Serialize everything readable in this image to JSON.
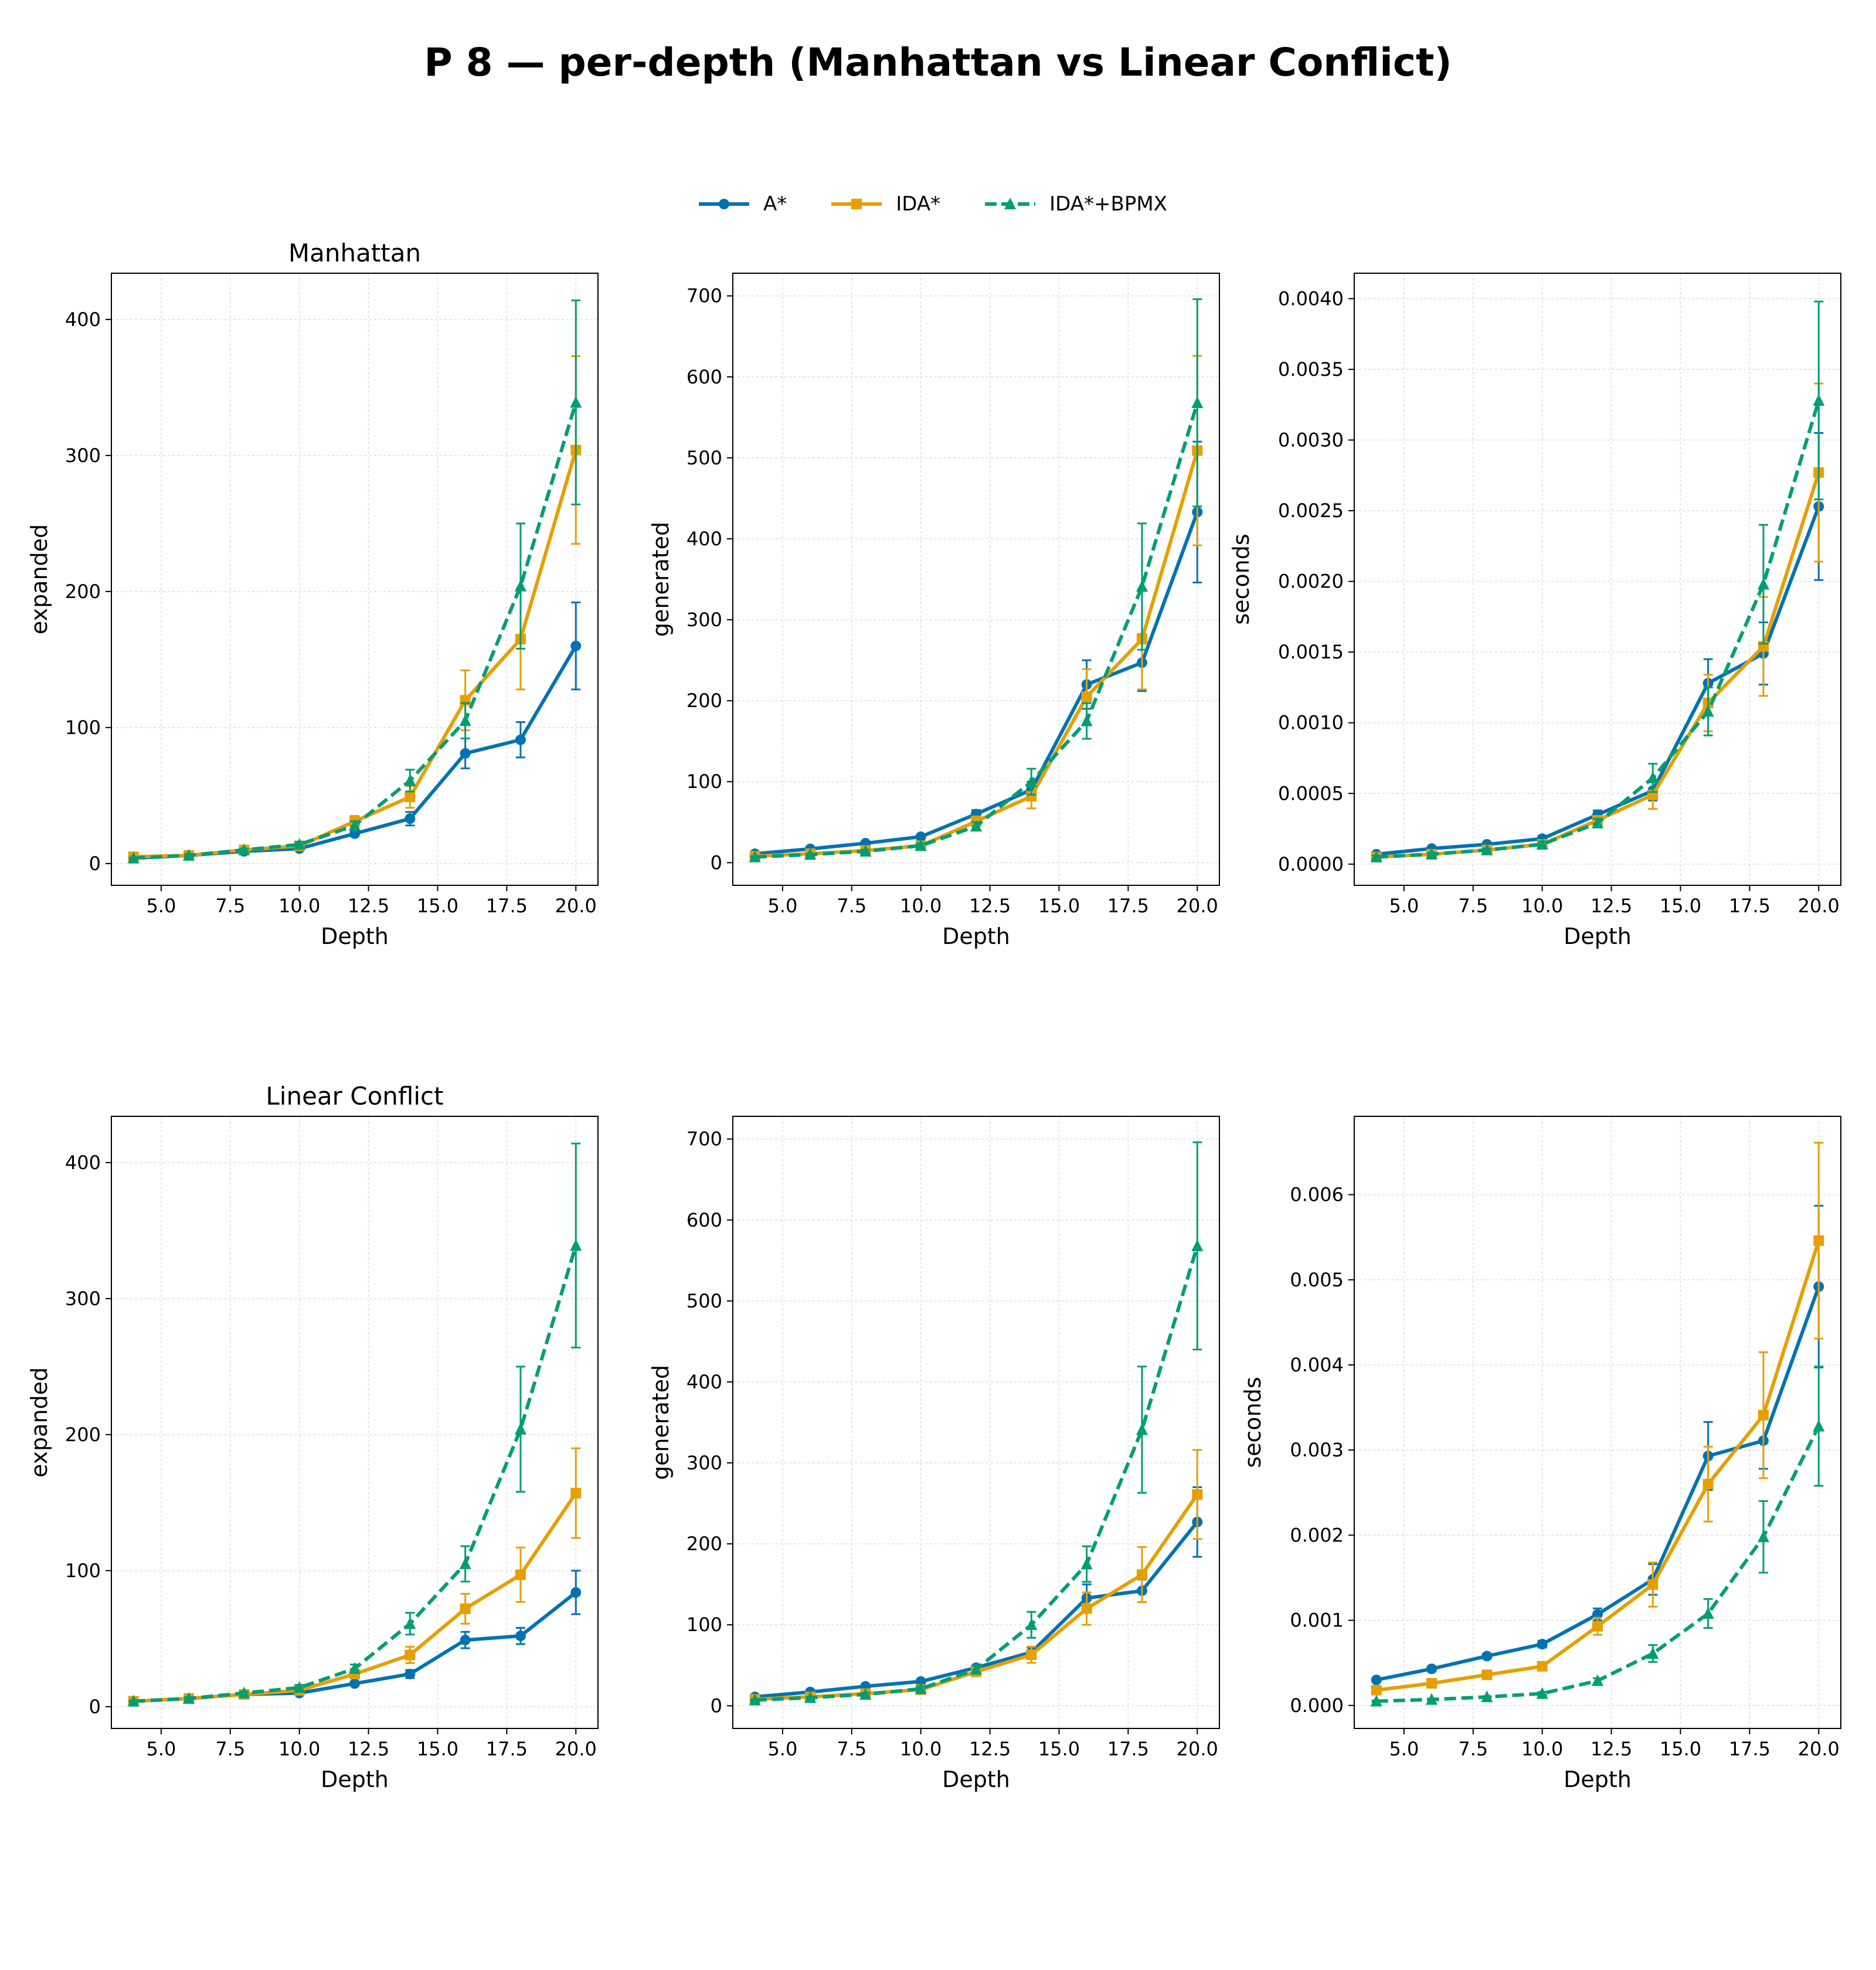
{
  "title": "P 8 — per-depth (Manhattan vs Linear Conflict)",
  "legend": {
    "placement": "top-center",
    "entries": [
      {
        "name": "A*",
        "color": "#0072b2",
        "marker": "circle",
        "dash": "solid"
      },
      {
        "name": "IDA*",
        "color": "#e69f00",
        "marker": "square",
        "dash": "solid"
      },
      {
        "name": "IDA*+BPMX",
        "color": "#009e73",
        "marker": "triangle",
        "dash": "dashed"
      }
    ]
  },
  "chart_data": [
    {
      "type": "line",
      "title": "Manhattan",
      "xlabel": "Depth",
      "ylabel": "expanded",
      "x": [
        4,
        6,
        8,
        10,
        12,
        14,
        16,
        18,
        20
      ],
      "xticks": [
        "5.0",
        "7.5",
        "10.0",
        "12.5",
        "15.0",
        "17.5",
        "20.0"
      ],
      "yticks": [
        "0",
        "100",
        "200",
        "300",
        "400"
      ],
      "xlim": [
        3.2,
        20.8
      ],
      "ylim": [
        -16,
        434
      ],
      "grid": true,
      "series": [
        {
          "name": "A*",
          "values": [
            4,
            6,
            9,
            11,
            22,
            33,
            81,
            91,
            160
          ],
          "err": [
            0.5,
            0.5,
            1,
            1,
            2,
            5,
            11,
            13,
            32
          ]
        },
        {
          "name": "IDA*",
          "values": [
            5,
            6,
            10,
            13,
            31,
            49,
            120,
            165,
            304
          ],
          "err": [
            0.5,
            1,
            1,
            1,
            4,
            8,
            22,
            37,
            69
          ]
        },
        {
          "name": "IDA*+BPMX",
          "values": [
            4,
            6,
            10,
            14,
            28,
            61,
            105,
            204,
            339
          ],
          "err": [
            0.5,
            1,
            1,
            2,
            3,
            8,
            13,
            46,
            75
          ]
        }
      ]
    },
    {
      "type": "line",
      "title": "",
      "xlabel": "Depth",
      "ylabel": "generated",
      "x": [
        4,
        6,
        8,
        10,
        12,
        14,
        16,
        18,
        20
      ],
      "xticks": [
        "5.0",
        "7.5",
        "10.0",
        "12.5",
        "15.0",
        "17.5",
        "20.0"
      ],
      "yticks": [
        "0",
        "100",
        "200",
        "300",
        "400",
        "500",
        "600",
        "700"
      ],
      "xlim": [
        3.2,
        20.8
      ],
      "ylim": [
        -28,
        728
      ],
      "grid": true,
      "series": [
        {
          "name": "A*",
          "values": [
            11,
            17,
            24,
            32,
            60,
            90,
            220,
            247,
            433
          ],
          "err": [
            1,
            1,
            2,
            2,
            5,
            10,
            30,
            35,
            87
          ]
        },
        {
          "name": "IDA*",
          "values": [
            8,
            11,
            15,
            21,
            51,
            82,
            205,
            276,
            509
          ],
          "err": [
            1,
            1,
            2,
            2,
            6,
            15,
            34,
            62,
            117
          ]
        },
        {
          "name": "IDA*+BPMX",
          "values": [
            7,
            10,
            14,
            21,
            45,
            100,
            175,
            341,
            568
          ],
          "err": [
            1,
            1,
            2,
            3,
            5,
            16,
            22,
            78,
            128
          ]
        }
      ]
    },
    {
      "type": "line",
      "title": "",
      "xlabel": "Depth",
      "ylabel": "seconds",
      "x": [
        4,
        6,
        8,
        10,
        12,
        14,
        16,
        18,
        20
      ],
      "xticks": [
        "5.0",
        "7.5",
        "10.0",
        "12.5",
        "15.0",
        "17.5",
        "20.0"
      ],
      "yticks": [
        "0.0000",
        "0.0005",
        "0.0010",
        "0.0015",
        "0.0020",
        "0.0025",
        "0.0030",
        "0.0035",
        "0.0040"
      ],
      "xlim": [
        3.2,
        20.8
      ],
      "ylim": [
        -0.00015,
        0.00418
      ],
      "grid": true,
      "series": [
        {
          "name": "A*",
          "values": [
            7e-05,
            0.00011,
            0.00014,
            0.00018,
            0.00035,
            0.00052,
            0.00128,
            0.00149,
            0.00253
          ],
          "err": [
            1e-05,
            1e-05,
            1e-05,
            2e-05,
            3e-05,
            7e-05,
            0.00017,
            0.00022,
            0.00052
          ]
        },
        {
          "name": "IDA*",
          "values": [
            5e-05,
            7e-05,
            0.0001,
            0.00014,
            0.00031,
            0.00049,
            0.00114,
            0.00154,
            0.00277
          ],
          "err": [
            1e-05,
            1e-05,
            1e-05,
            2e-05,
            3e-05,
            0.0001,
            0.0002,
            0.00035,
            0.00063
          ]
        },
        {
          "name": "IDA*+BPMX",
          "values": [
            5e-05,
            7e-05,
            0.0001,
            0.00014,
            0.00029,
            0.00061,
            0.00108,
            0.00198,
            0.00328
          ],
          "err": [
            1e-05,
            1e-05,
            1e-05,
            2e-05,
            3e-05,
            0.0001,
            0.00017,
            0.00042,
            0.0007
          ]
        }
      ]
    },
    {
      "type": "line",
      "title": "Linear Conflict",
      "xlabel": "Depth",
      "ylabel": "expanded",
      "x": [
        4,
        6,
        8,
        10,
        12,
        14,
        16,
        18,
        20
      ],
      "xticks": [
        "5.0",
        "7.5",
        "10.0",
        "12.5",
        "15.0",
        "17.5",
        "20.0"
      ],
      "yticks": [
        "0",
        "100",
        "200",
        "300",
        "400"
      ],
      "xlim": [
        3.2,
        20.8
      ],
      "ylim": [
        -16,
        434
      ],
      "grid": true,
      "series": [
        {
          "name": "A*",
          "values": [
            4,
            6,
            9,
            10,
            17,
            24,
            49,
            52,
            84
          ],
          "err": [
            0.5,
            0.5,
            1,
            1,
            1,
            3,
            6,
            6,
            16
          ]
        },
        {
          "name": "IDA*",
          "values": [
            4,
            6,
            9,
            12,
            24,
            38,
            72,
            97,
            157
          ],
          "err": [
            0.5,
            1,
            1,
            1,
            3,
            6,
            11,
            20,
            33
          ]
        },
        {
          "name": "IDA*+BPMX",
          "values": [
            4,
            6,
            10,
            14,
            28,
            61,
            105,
            204,
            339
          ],
          "err": [
            0.5,
            1,
            1,
            2,
            3,
            8,
            13,
            46,
            75
          ]
        }
      ]
    },
    {
      "type": "line",
      "title": "",
      "xlabel": "Depth",
      "ylabel": "generated",
      "x": [
        4,
        6,
        8,
        10,
        12,
        14,
        16,
        18,
        20
      ],
      "xticks": [
        "5.0",
        "7.5",
        "10.0",
        "12.5",
        "15.0",
        "17.5",
        "20.0"
      ],
      "yticks": [
        "0",
        "100",
        "200",
        "300",
        "400",
        "500",
        "600",
        "700"
      ],
      "xlim": [
        3.2,
        20.8
      ],
      "ylim": [
        -28,
        728
      ],
      "grid": true,
      "series": [
        {
          "name": "A*",
          "values": [
            11,
            17,
            24,
            30,
            47,
            66,
            133,
            142,
            227
          ],
          "err": [
            1,
            1,
            2,
            2,
            3,
            6,
            17,
            14,
            43
          ]
        },
        {
          "name": "IDA*",
          "values": [
            8,
            11,
            15,
            20,
            42,
            63,
            120,
            162,
            261
          ],
          "err": [
            1,
            1,
            1,
            2,
            4,
            10,
            20,
            34,
            55
          ]
        },
        {
          "name": "IDA*+BPMX",
          "values": [
            7,
            10,
            14,
            21,
            45,
            100,
            175,
            341,
            568
          ],
          "err": [
            1,
            1,
            2,
            3,
            5,
            16,
            22,
            78,
            128
          ]
        }
      ]
    },
    {
      "type": "line",
      "title": "",
      "xlabel": "Depth",
      "ylabel": "seconds",
      "x": [
        4,
        6,
        8,
        10,
        12,
        14,
        16,
        18,
        20
      ],
      "xticks": [
        "5.0",
        "7.5",
        "10.0",
        "12.5",
        "15.0",
        "17.5",
        "20.0"
      ],
      "yticks": [
        "0.000",
        "0.001",
        "0.002",
        "0.003",
        "0.004",
        "0.005",
        "0.006"
      ],
      "xlim": [
        3.2,
        20.8
      ],
      "ylim": [
        -0.00027,
        0.00692
      ],
      "grid": true,
      "series": [
        {
          "name": "A*",
          "values": [
            0.0003,
            0.00043,
            0.00058,
            0.00072,
            0.00107,
            0.00148,
            0.00293,
            0.00311,
            0.00492
          ],
          "err": [
            2e-05,
            3e-05,
            3e-05,
            4e-05,
            7e-05,
            0.00018,
            0.0004,
            0.00033,
            0.00095
          ]
        },
        {
          "name": "IDA*",
          "values": [
            0.00018,
            0.00026,
            0.00036,
            0.00046,
            0.00093,
            0.00142,
            0.0026,
            0.00341,
            0.00546
          ],
          "err": [
            2e-05,
            2e-05,
            3e-05,
            4e-05,
            0.0001,
            0.00026,
            0.00044,
            0.00074,
            0.00115
          ]
        },
        {
          "name": "IDA*+BPMX",
          "values": [
            5e-05,
            7e-05,
            0.0001,
            0.00014,
            0.00029,
            0.00061,
            0.00108,
            0.00198,
            0.00328
          ],
          "err": [
            1e-05,
            1e-05,
            1e-05,
            2e-05,
            3e-05,
            0.0001,
            0.00017,
            0.00042,
            0.0007
          ]
        }
      ]
    }
  ]
}
